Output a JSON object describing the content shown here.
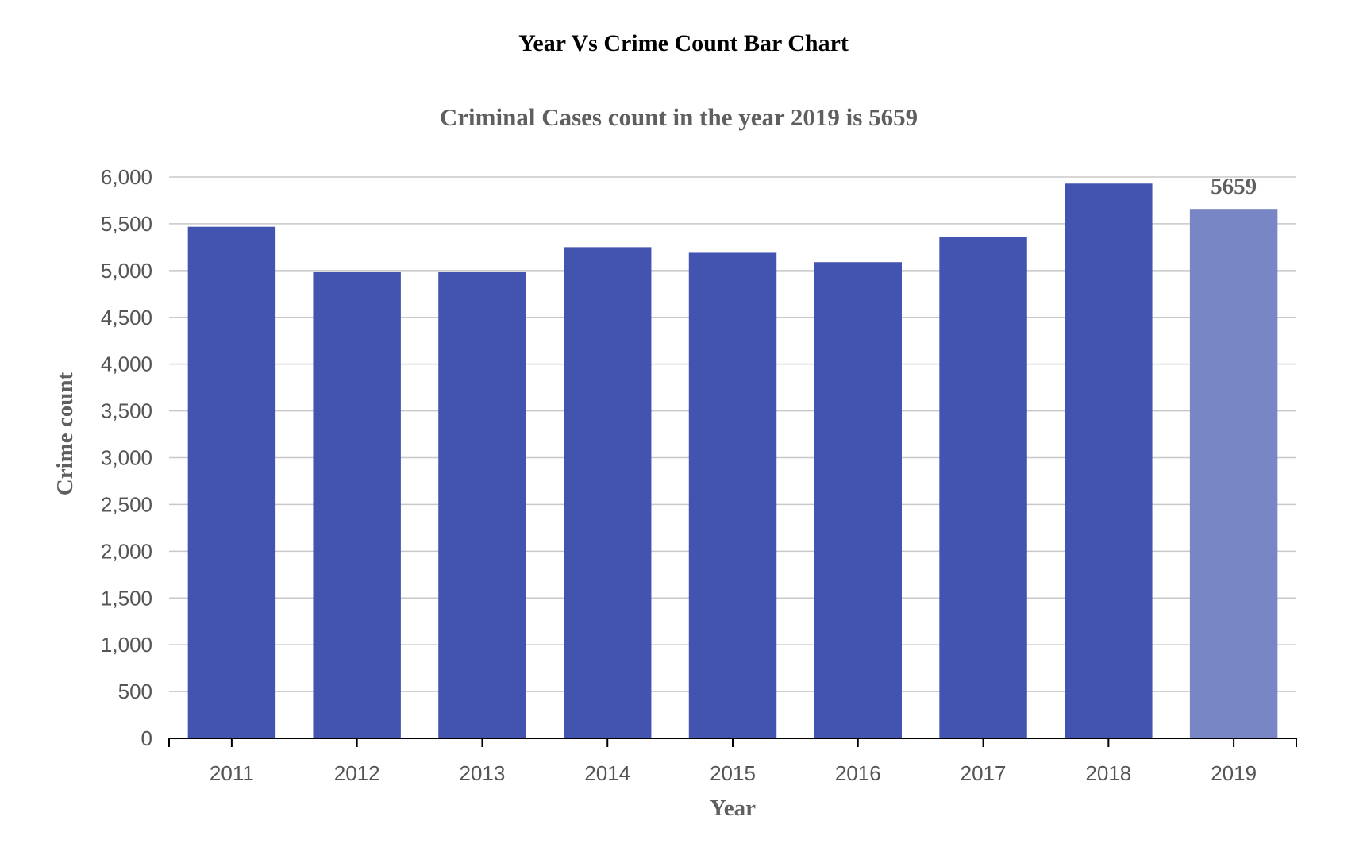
{
  "page": {
    "title": "Year Vs Crime Count Bar Chart"
  },
  "chart_data": {
    "type": "bar",
    "title": "Criminal Cases count in the year 2019 is 5659",
    "xlabel": "Year",
    "ylabel": "Crime count",
    "categories": [
      "2011",
      "2012",
      "2013",
      "2014",
      "2015",
      "2016",
      "2017",
      "2018",
      "2019"
    ],
    "values": [
      5468,
      4990,
      4983,
      5250,
      5190,
      5090,
      5360,
      5930,
      5659
    ],
    "ylim": [
      0,
      6000
    ],
    "yticks": [
      0,
      500,
      1000,
      1500,
      2000,
      2500,
      3000,
      3500,
      4000,
      4500,
      5000,
      5500,
      6000
    ],
    "ytick_labels": [
      "0",
      "500",
      "1,000",
      "1,500",
      "2,000",
      "2,500",
      "3,000",
      "3,500",
      "4,000",
      "4,500",
      "5,000",
      "5,500",
      "6,000"
    ],
    "highlight": {
      "category": "2019",
      "label": "5659"
    },
    "colors": {
      "bar": "#4353b0",
      "highlight_bar": "#7886c6",
      "grid": "#c8c8c8",
      "axis": "#000000"
    },
    "grid": true,
    "legend": "none"
  }
}
